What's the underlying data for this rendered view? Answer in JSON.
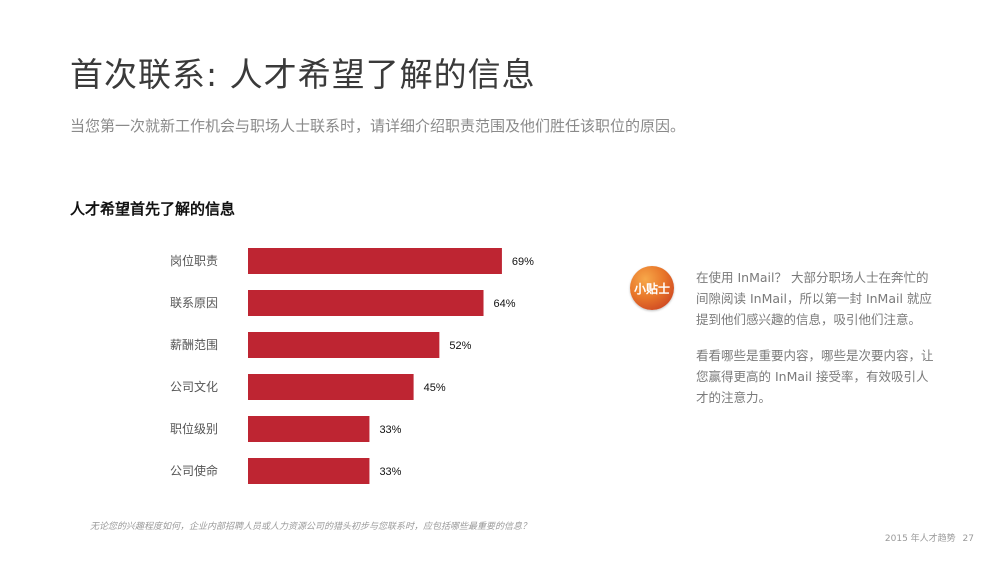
{
  "header": {
    "title": "首次联系: 人才希望了解的信息",
    "subtitle": "当您第一次就新工作机会与职场人士联系时，请详细介绍职责范围及他们胜任该职位的原因。"
  },
  "chart_data": {
    "type": "bar",
    "orientation": "horizontal",
    "title": "人才希望首先了解的信息",
    "categories": [
      "岗位职责",
      "联系原因",
      "薪酬范围",
      "公司文化",
      "职位级别",
      "公司使命"
    ],
    "values": [
      69,
      64,
      52,
      45,
      33,
      33
    ],
    "data_labels": [
      "69%",
      "64%",
      "52%",
      "45%",
      "33%",
      "33%"
    ],
    "unit": "%",
    "xlim": [
      0,
      100
    ],
    "grid": false,
    "legend": "none",
    "bar_color": "#be2532"
  },
  "tip": {
    "badge": "小贴士",
    "paragraph1": "在使用 InMail？ 大部分职场人士在奔忙的间隙阅读 InMail，所以第一封 InMail 就应提到他们感兴趣的信息，吸引他们注意。",
    "paragraph2": "看看哪些是重要内容，哪些是次要内容，让您赢得更高的 InMail 接受率，有效吸引人才的注意力。",
    "badge_colors": [
      "#f7a84a",
      "#e8762a",
      "#c1311f"
    ]
  },
  "footnote": "无论您的兴趣程度如何，企业内部招聘人员或人力资源公司的猎头初步与您联系时，应包括哪些最重要的信息？",
  "footer": {
    "report": "2015 年人才趋势",
    "page": "27"
  }
}
